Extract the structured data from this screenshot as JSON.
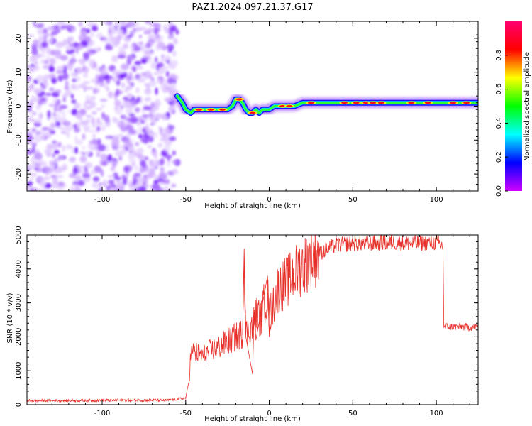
{
  "title": "PAZ1.2024.097.21.37.G17",
  "colors": {
    "snr_line": "#e8302a",
    "colorbar_stops": [
      "#d000ff",
      "#0000ff",
      "#00ffff",
      "#00ff00",
      "#ffff00",
      "#ff0000",
      "#ff0070"
    ]
  },
  "chart_data": [
    {
      "type": "heatmap",
      "xlabel": "Height of straight line (km)",
      "ylabel": "Frequency (Hz)",
      "xlim": [
        -145,
        125
      ],
      "ylim": [
        -25,
        25
      ],
      "xticks": [
        -100,
        -50,
        0,
        50,
        100
      ],
      "yticks": [
        -20,
        -10,
        0,
        10,
        20
      ],
      "colorbar": {
        "label": "Normalized spectral amplitude",
        "range": [
          0,
          1
        ],
        "ticks": [
          "0.0",
          "0.2",
          "0.4",
          "0.6",
          "0.8"
        ]
      },
      "noise_region_x": [
        -145,
        -55
      ],
      "ridge": {
        "x": [
          -55,
          -52,
          -50,
          -47,
          -45,
          -40,
          -35,
          -30,
          -25,
          -22,
          -20,
          -18,
          -16,
          -14,
          -12,
          -10,
          -8,
          -6,
          -4,
          -2,
          0,
          3,
          5,
          10,
          15,
          20,
          30,
          40,
          50,
          60,
          70,
          80,
          90,
          100,
          110,
          125
        ],
        "y": [
          3,
          1,
          -1,
          -2,
          -1,
          -1,
          -1,
          -1,
          -1,
          0,
          2,
          2,
          1,
          -1,
          -2,
          -2,
          -1,
          -2,
          -1,
          -1,
          -1,
          0,
          0,
          0,
          0,
          1,
          1,
          1,
          1,
          1,
          1,
          1,
          1,
          1,
          1,
          1
        ]
      }
    },
    {
      "type": "line",
      "xlabel": "Height of straight line (km)",
      "ylabel": "SNR (10 * v/v)",
      "xlim": [
        -145,
        125
      ],
      "ylim": [
        0,
        5000
      ],
      "xticks": [
        -100,
        -50,
        0,
        50,
        100
      ],
      "yticks": [
        0,
        1000,
        2000,
        3000,
        4000,
        5000
      ],
      "series": [
        {
          "x": [
            -145,
            -120,
            -90,
            -60,
            -50,
            -48,
            -47,
            -45,
            -40,
            -35,
            -30,
            -25,
            -20,
            -16,
            -15,
            -14,
            -12,
            -10,
            -7,
            -5,
            -3,
            -1,
            0,
            5,
            10,
            15,
            20,
            25,
            30,
            35,
            40,
            50,
            60,
            70,
            80,
            90,
            100,
            103,
            104,
            104.5,
            110,
            125
          ],
          "y": [
            120,
            120,
            130,
            130,
            200,
            700,
            1500,
            1550,
            1450,
            1600,
            1700,
            1850,
            2000,
            2100,
            4600,
            2100,
            2200,
            2350,
            2700,
            2500,
            3000,
            3250,
            2600,
            3400,
            3600,
            3850,
            4100,
            4300,
            4450,
            4600,
            4700,
            4750,
            4750,
            4780,
            4760,
            4750,
            4780,
            4700,
            4650,
            2300,
            2300,
            2280
          ],
          "spikes": [
            [
              -16,
              2050
            ],
            [
              -15,
              4600
            ],
            [
              -14,
              2000
            ],
            [
              -10,
              900
            ],
            [
              -9,
              2800
            ],
            [
              -8,
              1900
            ],
            [
              -1,
              3800
            ],
            [
              0,
              2000
            ],
            [
              1,
              3300
            ]
          ]
        }
      ]
    }
  ]
}
